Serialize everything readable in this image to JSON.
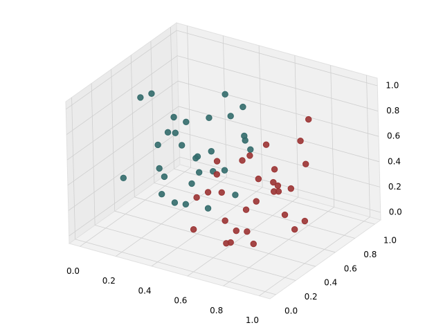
{
  "chart_data": {
    "type": "scatter3d",
    "xlim": [
      -0.06,
      1.06
    ],
    "ylim": [
      -0.06,
      1.06
    ],
    "zlim": [
      -0.06,
      1.06
    ],
    "xticks": [
      {
        "value": 0,
        "label": "0.0"
      },
      0.2,
      0.4,
      0.6,
      0.8,
      {
        "value": 1,
        "label": "1.0"
      }
    ],
    "yticks": [
      {
        "value": 0,
        "label": "0.0"
      },
      0.2,
      0.4,
      0.6,
      0.8,
      {
        "value": 1,
        "label": "1.0"
      }
    ],
    "zticks": [
      {
        "value": 0,
        "label": "0.0"
      },
      0.2,
      0.4,
      0.6,
      0.8,
      {
        "value": 1,
        "label": "1.0"
      }
    ],
    "grid": true,
    "series": [
      {
        "color": "#336b6b",
        "x": [
          0.05,
          0.1,
          0.15,
          0.2,
          0.25,
          0.3,
          0.35,
          0.4,
          0.45,
          0.1,
          0.2,
          0.3,
          0.4,
          0.05,
          0.15,
          0.25,
          0.35,
          0.45,
          0.12,
          0.22,
          0.32,
          0.42,
          0.08,
          0.18,
          0.28,
          0.38,
          0.48,
          0.14,
          0.24,
          0.34
        ],
        "y": [
          0.6,
          0.8,
          0.5,
          0.9,
          0.7,
          0.6,
          0.85,
          0.95,
          0.7,
          0.4,
          0.55,
          0.75,
          0.9,
          0.3,
          0.65,
          0.45,
          0.8,
          0.6,
          0.9,
          0.35,
          0.5,
          0.85,
          0.7,
          0.95,
          0.3,
          0.55,
          0.75,
          0.5,
          0.6,
          0.4
        ],
        "z": [
          0.8,
          0.3,
          0.1,
          0.5,
          0.2,
          0.4,
          0.6,
          0.3,
          0.1,
          0.9,
          0.7,
          0.2,
          0.4,
          0.3,
          0.5,
          0.1,
          0.8,
          0.35,
          0.15,
          0.6,
          0.25,
          0.7,
          0.45,
          0.2,
          0.4,
          0.05,
          0.55,
          0.3,
          0.65,
          0.15
        ]
      },
      {
        "color": "#9b3333",
        "x": [
          0.55,
          0.6,
          0.65,
          0.7,
          0.75,
          0.8,
          0.85,
          0.9,
          0.95,
          0.6,
          0.7,
          0.8,
          0.9,
          0.55,
          0.65,
          0.75,
          0.85,
          0.95,
          0.62,
          0.72,
          0.82,
          0.92,
          0.58,
          0.68,
          0.78,
          0.88,
          0.98,
          0.66,
          0.76,
          0.86
        ],
        "y": [
          0.1,
          0.3,
          0.5,
          0.2,
          0.6,
          0.4,
          0.7,
          0.3,
          0.5,
          0.05,
          0.15,
          0.25,
          0.65,
          0.35,
          0.45,
          0.55,
          0.1,
          0.2,
          0.4,
          0.3,
          0.6,
          0.45,
          0.2,
          0.5,
          0.35,
          0.6,
          0.25,
          0.15,
          0.05,
          0.4
        ],
        "z": [
          0.2,
          0.4,
          0.6,
          0.1,
          0.3,
          0.8,
          0.5,
          0.7,
          0.2,
          0.5,
          0.3,
          0.1,
          0.9,
          0.6,
          0.2,
          0.4,
          0.3,
          0.6,
          0.05,
          0.7,
          0.35,
          0.15,
          0.45,
          0.25,
          0.55,
          0.75,
          0.4,
          0.65,
          0.2,
          0.5
        ]
      }
    ]
  }
}
